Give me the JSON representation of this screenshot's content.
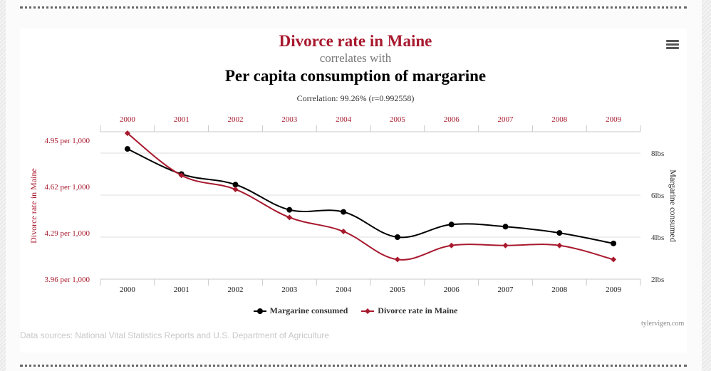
{
  "titles": {
    "primary": "Divorce rate in Maine",
    "connector": "correlates with",
    "secondary": "Per capita consumption of margarine",
    "correlation": "Correlation: 99.26% (r=0.992558)"
  },
  "menu": {
    "icon": "hamburger-menu-icon"
  },
  "legend": [
    {
      "label": "Margarine consumed",
      "color": "#000000",
      "marker": "circle"
    },
    {
      "label": "Divorce rate in Maine",
      "color": "#a8192e",
      "marker": "diamond"
    }
  ],
  "footer": {
    "sources": "Data sources: National Vital Statistics Reports and U.S. Department of Agriculture",
    "credit": "tylervigen.com"
  },
  "colors": {
    "accent": "#a8192e",
    "series_black": "#000000",
    "grid": "#d8d8d8",
    "axis_label_left": "#a8192e"
  },
  "chart_data": {
    "type": "line",
    "title": "Divorce rate in Maine correlates with Per capita consumption of margarine",
    "subtitle": "Correlation: 99.26% (r=0.992558)",
    "categories": [
      "2000",
      "2001",
      "2002",
      "2003",
      "2004",
      "2005",
      "2006",
      "2007",
      "2008",
      "2009"
    ],
    "series": [
      {
        "name": "Margarine consumed",
        "axis": "right",
        "color": "#000000",
        "marker": "circle",
        "values": [
          8.2,
          7.0,
          6.5,
          5.3,
          5.2,
          4.0,
          4.6,
          4.5,
          4.2,
          3.7
        ]
      },
      {
        "name": "Divorce rate in Maine",
        "axis": "left",
        "color": "#a8192e",
        "marker": "diamond",
        "values": [
          5.0,
          4.7,
          4.6,
          4.4,
          4.3,
          4.1,
          4.2,
          4.2,
          4.2,
          4.1
        ]
      }
    ],
    "left_axis": {
      "label": "Divorce rate in Maine",
      "range": [
        3.96,
        4.95
      ],
      "ticks": [
        3.96,
        4.29,
        4.62,
        4.95
      ],
      "tick_labels": [
        "3.96 per 1,000",
        "4.29 per 1,000",
        "4.62 per 1,000",
        "4.95 per 1,000"
      ]
    },
    "right_axis": {
      "label": "Margarine consumed",
      "range": [
        2,
        8
      ],
      "ticks": [
        2,
        4,
        6,
        8
      ],
      "tick_labels": [
        "2lbs",
        "4lbs",
        "6lbs",
        "8lbs"
      ]
    },
    "x_axis_top_labels": true,
    "grid": true,
    "legend_position": "bottom-center"
  }
}
